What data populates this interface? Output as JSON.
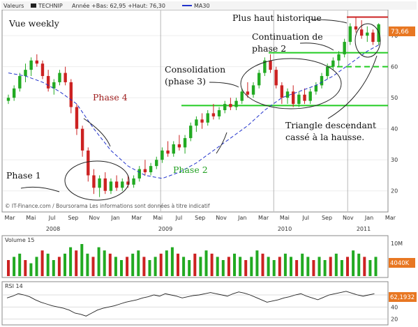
{
  "header": {
    "valeurs_label": "Valeurs",
    "ticker": "TECHNIP",
    "info": "Année +Bas: 62,95 +Haut: 76,30",
    "ma_label": "MA30"
  },
  "footer_note": "© IT-Finance.com / Boursorama Les informations sont données à titre indicatif",
  "annotations": {
    "vue": "Vue weekly",
    "phase1": "Phase 1",
    "phase2": "Phase 2",
    "phase4": "Phase 4",
    "consolidation1": "Consolidation",
    "consolidation2": "(phase 3)",
    "plus_haut": "Plus haut historique",
    "continuation1": "Continuation de",
    "continuation2": "phase 2",
    "triangle1": "Triangle descendant",
    "triangle2": "cassé à la hausse."
  },
  "colors": {
    "up": "#22aa22",
    "down": "#cc2222",
    "ma": "#2233cc",
    "phase4": "#a02020",
    "phase2": "#22a022",
    "level": "#22cc22",
    "resistance": "#cc2222",
    "price_box": "#e87722"
  },
  "chart_data": [
    {
      "type": "candlestick",
      "title": "",
      "x_tick_labels": [
        "Mar",
        "Mai",
        "Jul",
        "Sep",
        "Nov",
        "Jan",
        "Mar",
        "Mai",
        "Jul",
        "Sep",
        "Nov",
        "Jan",
        "Mar",
        "Mai",
        "Jul",
        "Sep",
        "Nov",
        "Jan",
        "Mar"
      ],
      "x_tick_weeks": [
        0,
        9,
        17,
        26,
        35,
        44,
        52,
        61,
        69,
        78,
        87,
        96,
        104,
        113,
        121,
        130,
        139,
        148,
        157
      ],
      "year_labels": [
        {
          "label": "2008",
          "week": 13
        },
        {
          "label": "2009",
          "week": 65
        },
        {
          "label": "2010",
          "week": 117
        },
        {
          "label": "2011",
          "week": 169
        }
      ],
      "y_ticks": [
        20,
        30,
        40,
        50,
        60,
        70
      ],
      "ylim": [
        15,
        77
      ],
      "last_price": "73,66",
      "last_value": 73.66,
      "series": [
        {
          "name": "TECHNIP",
          "kind": "candles",
          "points": [
            {
              "w": 0,
              "o": 49,
              "h": 51,
              "l": 48,
              "c": 50
            },
            {
              "w": 2,
              "o": 50,
              "h": 54,
              "l": 49,
              "c": 53
            },
            {
              "w": 4,
              "o": 53,
              "h": 58,
              "l": 52,
              "c": 57
            },
            {
              "w": 6,
              "o": 57,
              "h": 61,
              "l": 55,
              "c": 59
            },
            {
              "w": 8,
              "o": 59,
              "h": 63,
              "l": 57,
              "c": 62
            },
            {
              "w": 10,
              "o": 62,
              "h": 64,
              "l": 60,
              "c": 61
            },
            {
              "w": 12,
              "o": 61,
              "h": 62,
              "l": 56,
              "c": 57
            },
            {
              "w": 14,
              "o": 57,
              "h": 59,
              "l": 52,
              "c": 53
            },
            {
              "w": 16,
              "o": 53,
              "h": 56,
              "l": 51,
              "c": 55
            },
            {
              "w": 18,
              "o": 55,
              "h": 59,
              "l": 54,
              "c": 58
            },
            {
              "w": 20,
              "o": 58,
              "h": 60,
              "l": 54,
              "c": 55
            },
            {
              "w": 22,
              "o": 55,
              "h": 56,
              "l": 45,
              "c": 47
            },
            {
              "w": 24,
              "o": 47,
              "h": 48,
              "l": 38,
              "c": 40
            },
            {
              "w": 26,
              "o": 40,
              "h": 41,
              "l": 31,
              "c": 33
            },
            {
              "w": 28,
              "o": 33,
              "h": 34,
              "l": 23,
              "c": 25
            },
            {
              "w": 30,
              "o": 25,
              "h": 27,
              "l": 19,
              "c": 21
            },
            {
              "w": 32,
              "o": 21,
              "h": 25,
              "l": 18,
              "c": 24
            },
            {
              "w": 34,
              "o": 24,
              "h": 26,
              "l": 19,
              "c": 20
            },
            {
              "w": 36,
              "o": 20,
              "h": 24,
              "l": 19,
              "c": 23
            },
            {
              "w": 38,
              "o": 23,
              "h": 25,
              "l": 20,
              "c": 21
            },
            {
              "w": 40,
              "o": 21,
              "h": 24,
              "l": 20,
              "c": 23
            },
            {
              "w": 42,
              "o": 23,
              "h": 25,
              "l": 21,
              "c": 22
            },
            {
              "w": 44,
              "o": 22,
              "h": 25,
              "l": 21,
              "c": 24
            },
            {
              "w": 46,
              "o": 24,
              "h": 28,
              "l": 23,
              "c": 27
            },
            {
              "w": 48,
              "o": 27,
              "h": 30,
              "l": 25,
              "c": 26
            },
            {
              "w": 50,
              "o": 26,
              "h": 29,
              "l": 25,
              "c": 28
            },
            {
              "w": 52,
              "o": 28,
              "h": 31,
              "l": 27,
              "c": 30
            },
            {
              "w": 54,
              "o": 30,
              "h": 34,
              "l": 29,
              "c": 33
            },
            {
              "w": 56,
              "o": 33,
              "h": 36,
              "l": 31,
              "c": 32
            },
            {
              "w": 58,
              "o": 32,
              "h": 36,
              "l": 31,
              "c": 35
            },
            {
              "w": 60,
              "o": 35,
              "h": 38,
              "l": 33,
              "c": 34
            },
            {
              "w": 62,
              "o": 34,
              "h": 38,
              "l": 32,
              "c": 37
            },
            {
              "w": 64,
              "o": 37,
              "h": 42,
              "l": 36,
              "c": 41
            },
            {
              "w": 66,
              "o": 41,
              "h": 44,
              "l": 39,
              "c": 43
            },
            {
              "w": 68,
              "o": 43,
              "h": 45,
              "l": 40,
              "c": 42
            },
            {
              "w": 70,
              "o": 42,
              "h": 46,
              "l": 41,
              "c": 45
            },
            {
              "w": 72,
              "o": 45,
              "h": 48,
              "l": 43,
              "c": 44
            },
            {
              "w": 74,
              "o": 44,
              "h": 47,
              "l": 43,
              "c": 46
            },
            {
              "w": 76,
              "o": 46,
              "h": 49,
              "l": 45,
              "c": 48
            },
            {
              "w": 78,
              "o": 48,
              "h": 50,
              "l": 46,
              "c": 47
            },
            {
              "w": 80,
              "o": 47,
              "h": 50,
              "l": 46,
              "c": 49
            },
            {
              "w": 82,
              "o": 49,
              "h": 53,
              "l": 48,
              "c": 52
            },
            {
              "w": 84,
              "o": 52,
              "h": 55,
              "l": 50,
              "c": 51
            },
            {
              "w": 86,
              "o": 51,
              "h": 55,
              "l": 50,
              "c": 54
            },
            {
              "w": 88,
              "o": 54,
              "h": 59,
              "l": 53,
              "c": 58
            },
            {
              "w": 90,
              "o": 58,
              "h": 63,
              "l": 57,
              "c": 62
            },
            {
              "w": 92,
              "o": 62,
              "h": 64,
              "l": 58,
              "c": 59
            },
            {
              "w": 94,
              "o": 59,
              "h": 60,
              "l": 53,
              "c": 54
            },
            {
              "w": 96,
              "o": 54,
              "h": 55,
              "l": 48,
              "c": 50
            },
            {
              "w": 98,
              "o": 50,
              "h": 53,
              "l": 48,
              "c": 52
            },
            {
              "w": 100,
              "o": 52,
              "h": 54,
              "l": 47,
              "c": 48
            },
            {
              "w": 102,
              "o": 48,
              "h": 52,
              "l": 47,
              "c": 51
            },
            {
              "w": 104,
              "o": 51,
              "h": 53,
              "l": 48,
              "c": 49
            },
            {
              "w": 106,
              "o": 49,
              "h": 53,
              "l": 48,
              "c": 52
            },
            {
              "w": 108,
              "o": 52,
              "h": 55,
              "l": 51,
              "c": 54
            },
            {
              "w": 110,
              "o": 54,
              "h": 58,
              "l": 53,
              "c": 57
            },
            {
              "w": 112,
              "o": 57,
              "h": 61,
              "l": 56,
              "c": 60
            },
            {
              "w": 114,
              "o": 60,
              "h": 63,
              "l": 59,
              "c": 62
            },
            {
              "w": 116,
              "o": 62,
              "h": 65,
              "l": 60,
              "c": 64
            },
            {
              "w": 118,
              "o": 64,
              "h": 69,
              "l": 63,
              "c": 68
            },
            {
              "w": 120,
              "o": 68,
              "h": 74,
              "l": 67,
              "c": 73
            },
            {
              "w": 122,
              "o": 73,
              "h": 76,
              "l": 71,
              "c": 72
            },
            {
              "w": 124,
              "o": 72,
              "h": 75,
              "l": 69,
              "c": 70
            },
            {
              "w": 126,
              "o": 70,
              "h": 73,
              "l": 68,
              "c": 71
            },
            {
              "w": 128,
              "o": 71,
              "h": 72,
              "l": 67,
              "c": 68
            },
            {
              "w": 130,
              "o": 68,
              "h": 74,
              "l": 67,
              "c": 73.66
            }
          ]
        },
        {
          "name": "MA30",
          "kind": "line",
          "points": [
            [
              0,
              58
            ],
            [
              6,
              57
            ],
            [
              12,
              55
            ],
            [
              18,
              52
            ],
            [
              24,
              48
            ],
            [
              30,
              40
            ],
            [
              36,
              33
            ],
            [
              42,
              28
            ],
            [
              48,
              25
            ],
            [
              54,
              24
            ],
            [
              60,
              26
            ],
            [
              66,
              29
            ],
            [
              72,
              33
            ],
            [
              78,
              37
            ],
            [
              84,
              41
            ],
            [
              90,
              46
            ],
            [
              96,
              50
            ],
            [
              102,
              52
            ],
            [
              108,
              54
            ],
            [
              114,
              57
            ],
            [
              120,
              61
            ],
            [
              126,
              65
            ],
            [
              130,
              67
            ]
          ]
        }
      ],
      "levels": [
        {
          "value": 47.5,
          "style": "solid",
          "color_key": "level"
        },
        {
          "value": 64.5,
          "style": "solid",
          "color_key": "level"
        },
        {
          "value": 60,
          "style": "dashed",
          "color_key": "level"
        },
        {
          "value": 76,
          "style": "solid",
          "color_key": "resistance"
        }
      ]
    },
    {
      "type": "bar",
      "title": "Volume 15",
      "y_ticks": [
        "10M",
        "4040K"
      ],
      "last_value": "4040K",
      "values": [
        5,
        6,
        7,
        5,
        4,
        6,
        8,
        7,
        5,
        6,
        7,
        9,
        8,
        10,
        7,
        6,
        9,
        8,
        7,
        6,
        5,
        6,
        7,
        8,
        6,
        5,
        6,
        7,
        8,
        9,
        7,
        6,
        5,
        7,
        6,
        8,
        7,
        6,
        5,
        6,
        7,
        6,
        5,
        6,
        8,
        7,
        6,
        5,
        6,
        7,
        6,
        5,
        7,
        6,
        5,
        6,
        5,
        6,
        7,
        5,
        6,
        8,
        7,
        6,
        5,
        6
      ]
    },
    {
      "type": "line",
      "title": "RSI 14",
      "y_ticks": [
        20,
        40,
        60
      ],
      "last_value": "62,1932",
      "values": [
        55,
        58,
        62,
        60,
        57,
        52,
        48,
        45,
        42,
        40,
        38,
        35,
        30,
        28,
        25,
        30,
        35,
        38,
        40,
        42,
        45,
        48,
        50,
        52,
        55,
        57,
        60,
        58,
        62,
        60,
        58,
        55,
        57,
        59,
        60,
        62,
        64,
        62,
        60,
        58,
        62,
        65,
        63,
        60,
        56,
        52,
        48,
        50,
        52,
        55,
        57,
        60,
        62,
        58,
        55,
        52,
        56,
        60,
        62,
        64,
        66,
        63,
        60,
        58,
        60,
        62
      ]
    }
  ]
}
